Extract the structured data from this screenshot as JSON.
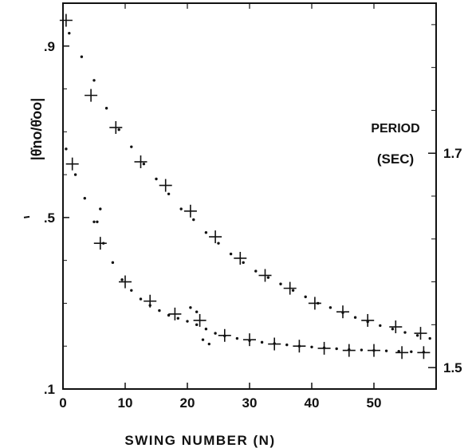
{
  "chart_data": {
    "type": "scatter",
    "title": "",
    "xlabel": "SWING NUMBER (N)",
    "ylabel": "|θ̇no/θ̇oo|",
    "y2label_line1": "PERIOD",
    "y2label_line2": "(SEC)",
    "xlim": [
      0,
      60
    ],
    "ylim": [
      0.1,
      1.0
    ],
    "y2lim": [
      1.48,
      1.84
    ],
    "x_ticks": [
      0,
      10,
      20,
      30,
      40,
      50
    ],
    "x_tick_labels": [
      "0",
      "10",
      "20",
      "30",
      "40",
      "50"
    ],
    "y_ticks": [
      0.1,
      0.5,
      0.9
    ],
    "y_tick_labels": [
      ".1",
      ".5",
      ".9"
    ],
    "y2_ticks": [
      1.5,
      1.7
    ],
    "y2_tick_labels": [
      "1.5",
      "1.7"
    ],
    "grid": false,
    "series": [
      {
        "marker": "+",
        "x": [
          0.5,
          4.5,
          8.5,
          12.5,
          16.5,
          20.5,
          24.5,
          28.5,
          32.5,
          36.5,
          40.5,
          45,
          49,
          53.5,
          57.5
        ],
        "y": [
          0.96,
          0.785,
          0.71,
          0.63,
          0.575,
          0.515,
          0.455,
          0.405,
          0.365,
          0.335,
          0.3,
          0.28,
          0.26,
          0.245,
          0.23
        ]
      },
      {
        "marker": "+",
        "x": [
          1.5,
          6,
          10,
          14,
          18,
          22,
          26,
          30,
          34,
          38,
          42,
          46,
          50,
          54.5,
          58
        ],
        "y": [
          0.625,
          0.44,
          0.35,
          0.305,
          0.275,
          0.26,
          0.225,
          0.215,
          0.205,
          0.2,
          0.195,
          0.19,
          0.19,
          0.185,
          0.185
        ]
      }
    ],
    "dotted_trend_upper": {
      "x": [
        1,
        3,
        5,
        7,
        9,
        11,
        13,
        15,
        17,
        19,
        21,
        23,
        25,
        27,
        29,
        31,
        33,
        35,
        37,
        39,
        41,
        43,
        45,
        47,
        49,
        51,
        53,
        55,
        57,
        59
      ],
      "y": [
        0.93,
        0.875,
        0.82,
        0.755,
        0.705,
        0.665,
        0.625,
        0.59,
        0.555,
        0.52,
        0.495,
        0.465,
        0.44,
        0.415,
        0.395,
        0.375,
        0.36,
        0.345,
        0.33,
        0.315,
        0.3,
        0.29,
        0.278,
        0.267,
        0.257,
        0.248,
        0.24,
        0.232,
        0.225,
        0.218
      ]
    },
    "dotted_trend_lower": {
      "x": [
        0.5,
        2,
        3.5,
        5,
        6.5,
        8,
        9.5,
        11,
        12.5,
        14,
        15.5,
        17,
        18.5,
        20,
        21.5,
        23,
        24.5,
        26,
        28,
        30,
        32,
        34,
        36,
        38,
        40,
        42,
        44,
        46,
        48,
        50,
        52,
        54,
        56,
        58
      ],
      "y": [
        0.66,
        0.6,
        0.545,
        0.49,
        0.44,
        0.395,
        0.355,
        0.33,
        0.31,
        0.295,
        0.283,
        0.272,
        0.265,
        0.258,
        0.25,
        0.24,
        0.23,
        0.224,
        0.218,
        0.213,
        0.209,
        0.206,
        0.203,
        0.2,
        0.198,
        0.196,
        0.194,
        0.192,
        0.191,
        0.19,
        0.189,
        0.188,
        0.187,
        0.186
      ]
    },
    "dotted_segments": [
      {
        "x": [
          6,
          5.5
        ],
        "y": [
          0.52,
          0.49
        ]
      },
      {
        "x": [
          20.5,
          21.5
        ],
        "y": [
          0.29,
          0.28
        ]
      },
      {
        "x": [
          22.5,
          23.5
        ],
        "y": [
          0.215,
          0.205
        ]
      }
    ]
  }
}
